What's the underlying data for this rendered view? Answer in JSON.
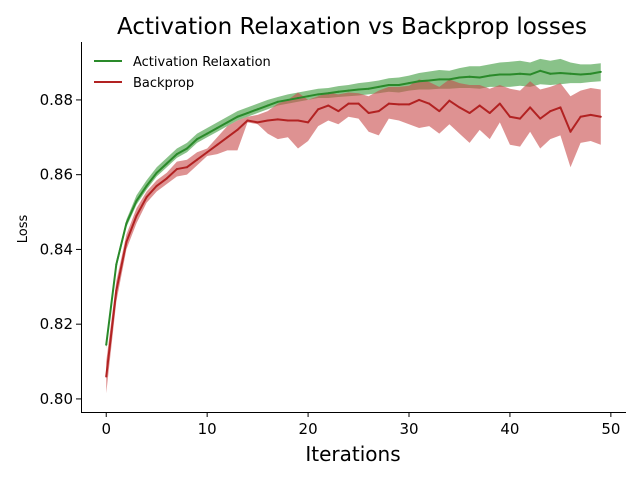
{
  "chart_data": {
    "type": "line",
    "title": "Activation Relaxation vs Backprop losses",
    "xlabel": "Iterations",
    "ylabel": "Loss",
    "xlim": [
      -2.5,
      51.5
    ],
    "ylim": [
      0.7965,
      0.8955
    ],
    "xticks": [
      0,
      10,
      20,
      30,
      40,
      50
    ],
    "yticks": [
      0.8,
      0.82,
      0.84,
      0.86,
      0.88
    ],
    "xtick_labels": [
      "0",
      "10",
      "20",
      "30",
      "40",
      "50"
    ],
    "ytick_labels": [
      "0.80",
      "0.82",
      "0.84",
      "0.86",
      "0.88"
    ],
    "grid": false,
    "legend_position": "top-left",
    "x": [
      0,
      1,
      2,
      3,
      4,
      5,
      6,
      7,
      8,
      9,
      10,
      11,
      12,
      13,
      14,
      15,
      16,
      17,
      18,
      19,
      20,
      21,
      22,
      23,
      24,
      25,
      26,
      27,
      28,
      29,
      30,
      31,
      32,
      33,
      34,
      35,
      36,
      37,
      38,
      39,
      40,
      41,
      42,
      43,
      44,
      45,
      46,
      47,
      48,
      49
    ],
    "series": [
      {
        "name": "Activation Relaxation",
        "color": "#2a8a2a",
        "fill": "#3a9a3a",
        "values": [
          0.8145,
          0.836,
          0.847,
          0.853,
          0.857,
          0.8605,
          0.863,
          0.8655,
          0.867,
          0.8695,
          0.871,
          0.8725,
          0.874,
          0.8755,
          0.8765,
          0.8775,
          0.8785,
          0.8795,
          0.88,
          0.8805,
          0.881,
          0.8815,
          0.8818,
          0.8822,
          0.8825,
          0.8828,
          0.883,
          0.8835,
          0.884,
          0.884,
          0.8845,
          0.885,
          0.8852,
          0.8855,
          0.8855,
          0.886,
          0.8862,
          0.886,
          0.8865,
          0.8868,
          0.8868,
          0.887,
          0.8868,
          0.8878,
          0.887,
          0.8872,
          0.887,
          0.8868,
          0.887,
          0.8875
        ],
        "lower": [
          0.8135,
          0.835,
          0.846,
          0.852,
          0.856,
          0.8595,
          0.862,
          0.8645,
          0.866,
          0.8685,
          0.87,
          0.8715,
          0.873,
          0.8745,
          0.8755,
          0.8765,
          0.8775,
          0.8785,
          0.879,
          0.8795,
          0.88,
          0.8805,
          0.8805,
          0.8808,
          0.881,
          0.8812,
          0.8815,
          0.8818,
          0.8822,
          0.882,
          0.8825,
          0.8828,
          0.8828,
          0.883,
          0.883,
          0.8832,
          0.8832,
          0.883,
          0.8835,
          0.8835,
          0.8835,
          0.8838,
          0.8835,
          0.8842,
          0.884,
          0.8842,
          0.8845,
          0.8845,
          0.8848,
          0.885
        ],
        "upper": [
          0.8155,
          0.837,
          0.848,
          0.8545,
          0.8585,
          0.862,
          0.8645,
          0.867,
          0.8685,
          0.871,
          0.8725,
          0.874,
          0.8755,
          0.877,
          0.878,
          0.879,
          0.88,
          0.8808,
          0.8815,
          0.882,
          0.8825,
          0.883,
          0.8832,
          0.8837,
          0.884,
          0.8845,
          0.8848,
          0.8852,
          0.8858,
          0.886,
          0.8865,
          0.8872,
          0.8876,
          0.888,
          0.8878,
          0.8885,
          0.889,
          0.889,
          0.8895,
          0.89,
          0.8902,
          0.8905,
          0.89,
          0.891,
          0.8905,
          0.891,
          0.89,
          0.8895,
          0.8895,
          0.8898
        ]
      },
      {
        "name": "Backprop",
        "color": "#b22222",
        "fill": "#c84a4a",
        "values": [
          0.806,
          0.829,
          0.842,
          0.849,
          0.854,
          0.857,
          0.859,
          0.8615,
          0.862,
          0.864,
          0.866,
          0.868,
          0.87,
          0.872,
          0.8745,
          0.874,
          0.8745,
          0.8748,
          0.8745,
          0.8745,
          0.874,
          0.8775,
          0.8785,
          0.877,
          0.879,
          0.879,
          0.8765,
          0.877,
          0.879,
          0.8788,
          0.8788,
          0.88,
          0.879,
          0.877,
          0.8798,
          0.878,
          0.8765,
          0.8785,
          0.8765,
          0.879,
          0.8755,
          0.875,
          0.878,
          0.875,
          0.877,
          0.878,
          0.8715,
          0.8755,
          0.876,
          0.8755
        ],
        "lower": [
          0.8015,
          0.826,
          0.84,
          0.847,
          0.8525,
          0.8555,
          0.8575,
          0.8595,
          0.86,
          0.8625,
          0.865,
          0.8655,
          0.8665,
          0.8665,
          0.874,
          0.8735,
          0.871,
          0.8695,
          0.87,
          0.867,
          0.869,
          0.873,
          0.8745,
          0.8735,
          0.8755,
          0.875,
          0.8715,
          0.8705,
          0.875,
          0.8745,
          0.8735,
          0.8725,
          0.873,
          0.871,
          0.8735,
          0.871,
          0.8685,
          0.872,
          0.8695,
          0.874,
          0.868,
          0.8675,
          0.8715,
          0.867,
          0.8695,
          0.8705,
          0.862,
          0.8685,
          0.869,
          0.868
        ],
        "upper": [
          0.81,
          0.8315,
          0.844,
          0.851,
          0.8555,
          0.8585,
          0.8605,
          0.8635,
          0.864,
          0.866,
          0.867,
          0.87,
          0.873,
          0.8745,
          0.8755,
          0.876,
          0.877,
          0.879,
          0.88,
          0.882,
          0.88,
          0.881,
          0.882,
          0.8815,
          0.882,
          0.8818,
          0.881,
          0.8825,
          0.8835,
          0.8835,
          0.8838,
          0.8855,
          0.8848,
          0.8835,
          0.8855,
          0.8845,
          0.884,
          0.884,
          0.883,
          0.884,
          0.883,
          0.8825,
          0.885,
          0.8828,
          0.8835,
          0.8845,
          0.881,
          0.8825,
          0.8832,
          0.8828
        ]
      }
    ]
  }
}
